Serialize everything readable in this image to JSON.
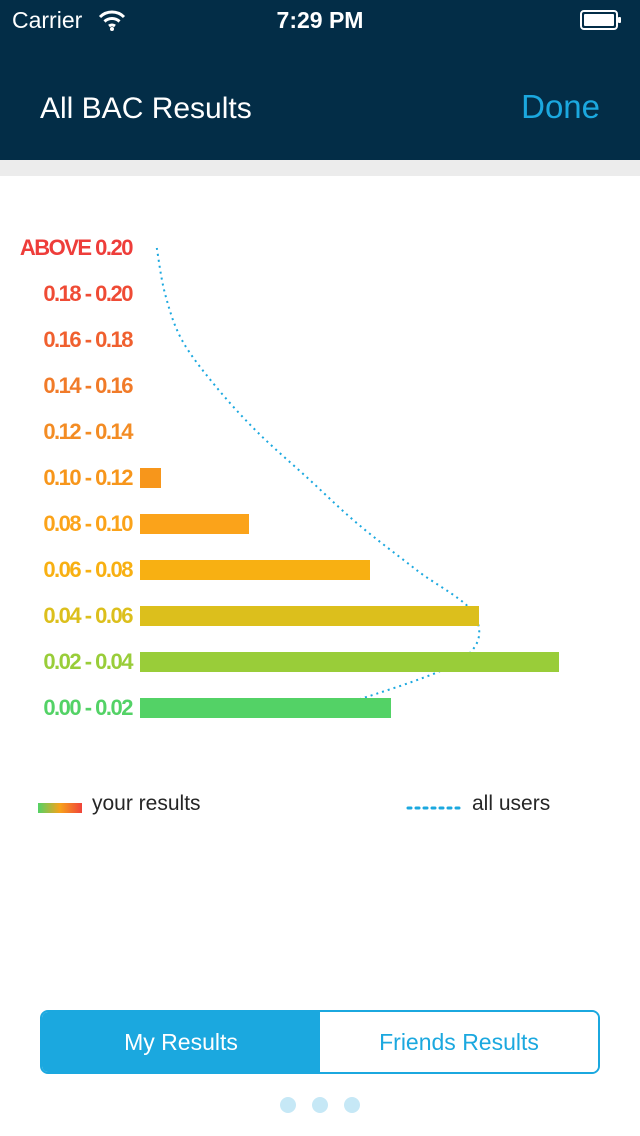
{
  "status_bar": {
    "carrier": "Carrier",
    "time": "7:29 PM"
  },
  "nav": {
    "title": "All BAC Results",
    "done_label": "Done"
  },
  "colors": {
    "nav_background": "#032d47",
    "accent": "#1ba8df",
    "dotted_line": "#1ba8df"
  },
  "chart_data": {
    "type": "bar",
    "orientation": "horizontal",
    "categories": [
      "ABOVE 0.20",
      "0.18 - 0.20",
      "0.16 - 0.18",
      "0.14 - 0.16",
      "0.12 - 0.14",
      "0.10 - 0.12",
      "0.08 - 0.10",
      "0.06 - 0.08",
      "0.04 - 0.06",
      "0.02 - 0.04",
      "0.00 - 0.02"
    ],
    "category_colors": [
      "#ee3d3a",
      "#ef4b35",
      "#f0602f",
      "#f17b29",
      "#f38c24",
      "#f7961b",
      "#fba31a",
      "#f8b012",
      "#dcbf1c",
      "#99cd39",
      "#53d266"
    ],
    "series": [
      {
        "values": [
          0,
          0,
          0,
          0,
          0,
          0.05,
          0.26,
          0.55,
          0.81,
          1.0,
          0.6
        ],
        "style": "bars"
      },
      {
        "values": [
          0.04,
          0.06,
          0.1,
          0.18,
          0.28,
          0.4,
          0.52,
          0.66,
          0.8,
          0.76,
          0.46
        ],
        "style": "dotted-line"
      }
    ],
    "legend": [
      {
        "label": "your results",
        "style": "gradient-bar"
      },
      {
        "label": "all users",
        "style": "dotted-line"
      }
    ]
  },
  "tabs": [
    {
      "label": "My Results",
      "active": true
    },
    {
      "label": "Friends Results",
      "active": false
    }
  ],
  "pager": {
    "count": 3,
    "current": 2
  }
}
